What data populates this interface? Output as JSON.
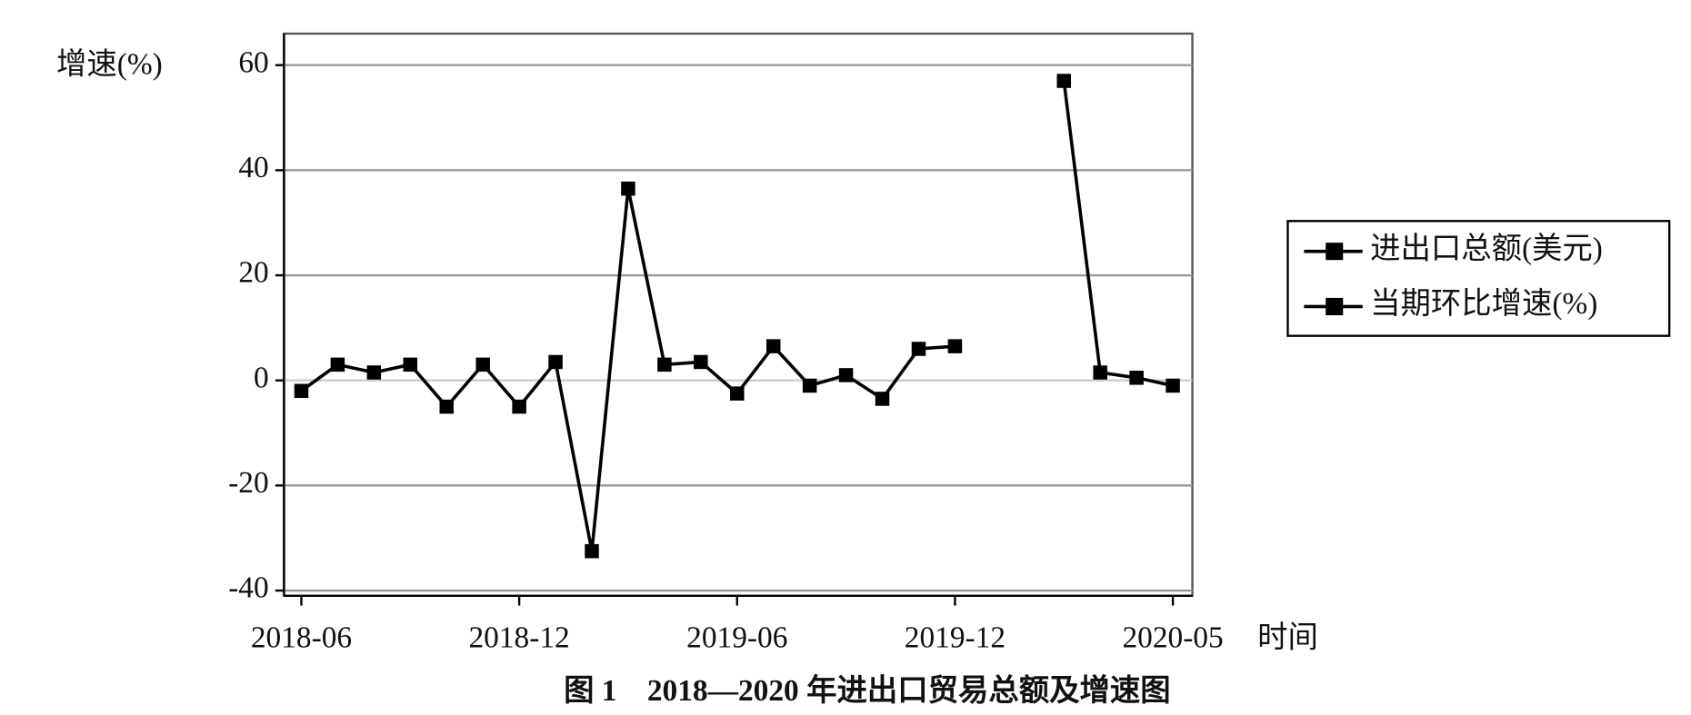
{
  "chart_data": {
    "type": "line",
    "title": "图 1　2018—2020 年进出口贸易总额及增速图",
    "y_label": "增速(%)",
    "x_label": "时间",
    "categories": [
      "2018-06",
      null,
      null,
      null,
      null,
      null,
      "2018-12",
      null,
      null,
      null,
      null,
      null,
      "2019-06",
      null,
      null,
      null,
      null,
      null,
      "2019-12",
      null,
      null,
      null,
      null,
      null,
      "2020-05"
    ],
    "series": [
      {
        "name": "进出口总额(美元)",
        "color": "#000000",
        "values": [
          null,
          null,
          null,
          null,
          null,
          null,
          null,
          null,
          null,
          null,
          null,
          null,
          null,
          null,
          null,
          null,
          null,
          null,
          null,
          null,
          null,
          null,
          null,
          null,
          null
        ]
      },
      {
        "name": "当期环比增速(%)",
        "color": "#000000",
        "values": [
          -2,
          3,
          1.5,
          3,
          -5,
          3,
          -5,
          3.5,
          -32.5,
          36.5,
          3,
          3.5,
          -2.5,
          6.5,
          -1,
          1,
          -3.5,
          6,
          6.5,
          null,
          null,
          57,
          1.5,
          0.5,
          -1
        ]
      }
    ],
    "ylim": [
      -41,
      66
    ],
    "yticks": [
      -40,
      -20,
      0,
      20,
      40,
      60
    ],
    "grid": true,
    "legend": "right"
  }
}
